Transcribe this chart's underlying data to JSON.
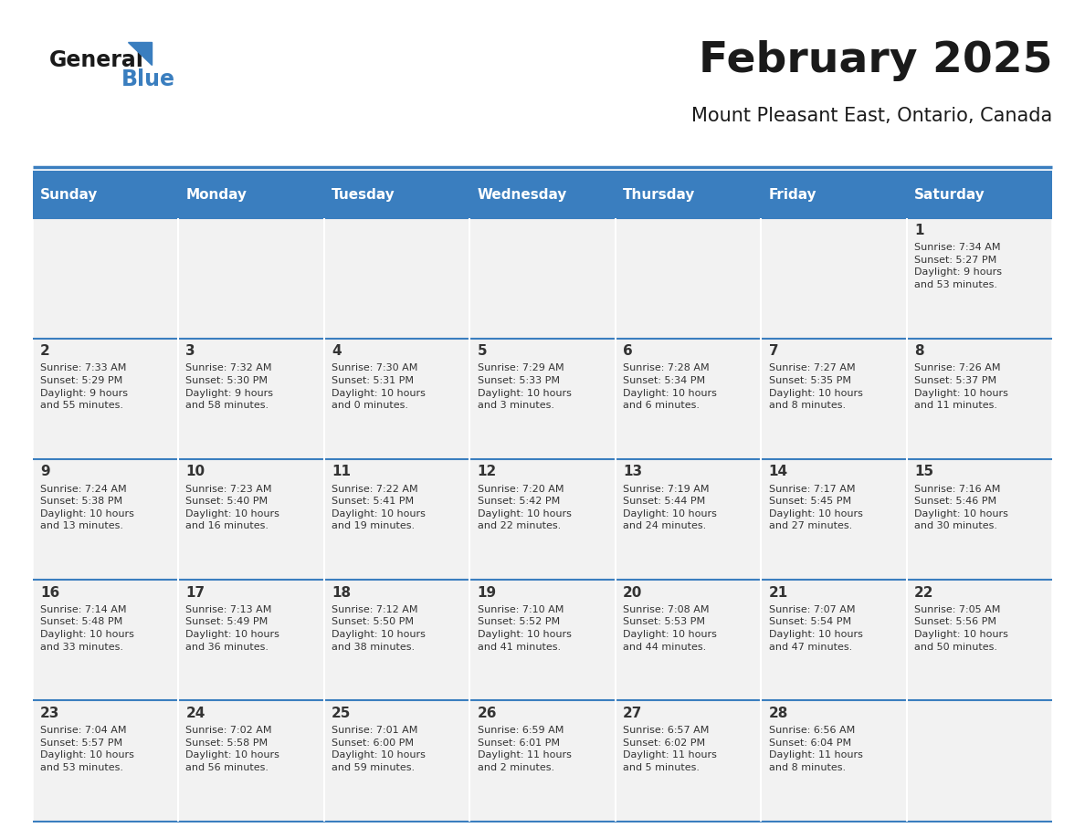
{
  "title": "February 2025",
  "subtitle": "Mount Pleasant East, Ontario, Canada",
  "header_color": "#3A7EBF",
  "header_text_color": "#FFFFFF",
  "cell_bg_light": "#F2F2F2",
  "cell_bg_white": "#FFFFFF",
  "border_color": "#3A7EBF",
  "text_color": "#333333",
  "day_headers": [
    "Sunday",
    "Monday",
    "Tuesday",
    "Wednesday",
    "Thursday",
    "Friday",
    "Saturday"
  ],
  "weeks": [
    [
      {
        "day": "",
        "info": ""
      },
      {
        "day": "",
        "info": ""
      },
      {
        "day": "",
        "info": ""
      },
      {
        "day": "",
        "info": ""
      },
      {
        "day": "",
        "info": ""
      },
      {
        "day": "",
        "info": ""
      },
      {
        "day": "1",
        "info": "Sunrise: 7:34 AM\nSunset: 5:27 PM\nDaylight: 9 hours\nand 53 minutes."
      }
    ],
    [
      {
        "day": "2",
        "info": "Sunrise: 7:33 AM\nSunset: 5:29 PM\nDaylight: 9 hours\nand 55 minutes."
      },
      {
        "day": "3",
        "info": "Sunrise: 7:32 AM\nSunset: 5:30 PM\nDaylight: 9 hours\nand 58 minutes."
      },
      {
        "day": "4",
        "info": "Sunrise: 7:30 AM\nSunset: 5:31 PM\nDaylight: 10 hours\nand 0 minutes."
      },
      {
        "day": "5",
        "info": "Sunrise: 7:29 AM\nSunset: 5:33 PM\nDaylight: 10 hours\nand 3 minutes."
      },
      {
        "day": "6",
        "info": "Sunrise: 7:28 AM\nSunset: 5:34 PM\nDaylight: 10 hours\nand 6 minutes."
      },
      {
        "day": "7",
        "info": "Sunrise: 7:27 AM\nSunset: 5:35 PM\nDaylight: 10 hours\nand 8 minutes."
      },
      {
        "day": "8",
        "info": "Sunrise: 7:26 AM\nSunset: 5:37 PM\nDaylight: 10 hours\nand 11 minutes."
      }
    ],
    [
      {
        "day": "9",
        "info": "Sunrise: 7:24 AM\nSunset: 5:38 PM\nDaylight: 10 hours\nand 13 minutes."
      },
      {
        "day": "10",
        "info": "Sunrise: 7:23 AM\nSunset: 5:40 PM\nDaylight: 10 hours\nand 16 minutes."
      },
      {
        "day": "11",
        "info": "Sunrise: 7:22 AM\nSunset: 5:41 PM\nDaylight: 10 hours\nand 19 minutes."
      },
      {
        "day": "12",
        "info": "Sunrise: 7:20 AM\nSunset: 5:42 PM\nDaylight: 10 hours\nand 22 minutes."
      },
      {
        "day": "13",
        "info": "Sunrise: 7:19 AM\nSunset: 5:44 PM\nDaylight: 10 hours\nand 24 minutes."
      },
      {
        "day": "14",
        "info": "Sunrise: 7:17 AM\nSunset: 5:45 PM\nDaylight: 10 hours\nand 27 minutes."
      },
      {
        "day": "15",
        "info": "Sunrise: 7:16 AM\nSunset: 5:46 PM\nDaylight: 10 hours\nand 30 minutes."
      }
    ],
    [
      {
        "day": "16",
        "info": "Sunrise: 7:14 AM\nSunset: 5:48 PM\nDaylight: 10 hours\nand 33 minutes."
      },
      {
        "day": "17",
        "info": "Sunrise: 7:13 AM\nSunset: 5:49 PM\nDaylight: 10 hours\nand 36 minutes."
      },
      {
        "day": "18",
        "info": "Sunrise: 7:12 AM\nSunset: 5:50 PM\nDaylight: 10 hours\nand 38 minutes."
      },
      {
        "day": "19",
        "info": "Sunrise: 7:10 AM\nSunset: 5:52 PM\nDaylight: 10 hours\nand 41 minutes."
      },
      {
        "day": "20",
        "info": "Sunrise: 7:08 AM\nSunset: 5:53 PM\nDaylight: 10 hours\nand 44 minutes."
      },
      {
        "day": "21",
        "info": "Sunrise: 7:07 AM\nSunset: 5:54 PM\nDaylight: 10 hours\nand 47 minutes."
      },
      {
        "day": "22",
        "info": "Sunrise: 7:05 AM\nSunset: 5:56 PM\nDaylight: 10 hours\nand 50 minutes."
      }
    ],
    [
      {
        "day": "23",
        "info": "Sunrise: 7:04 AM\nSunset: 5:57 PM\nDaylight: 10 hours\nand 53 minutes."
      },
      {
        "day": "24",
        "info": "Sunrise: 7:02 AM\nSunset: 5:58 PM\nDaylight: 10 hours\nand 56 minutes."
      },
      {
        "day": "25",
        "info": "Sunrise: 7:01 AM\nSunset: 6:00 PM\nDaylight: 10 hours\nand 59 minutes."
      },
      {
        "day": "26",
        "info": "Sunrise: 6:59 AM\nSunset: 6:01 PM\nDaylight: 11 hours\nand 2 minutes."
      },
      {
        "day": "27",
        "info": "Sunrise: 6:57 AM\nSunset: 6:02 PM\nDaylight: 11 hours\nand 5 minutes."
      },
      {
        "day": "28",
        "info": "Sunrise: 6:56 AM\nSunset: 6:04 PM\nDaylight: 11 hours\nand 8 minutes."
      },
      {
        "day": "",
        "info": ""
      }
    ]
  ]
}
